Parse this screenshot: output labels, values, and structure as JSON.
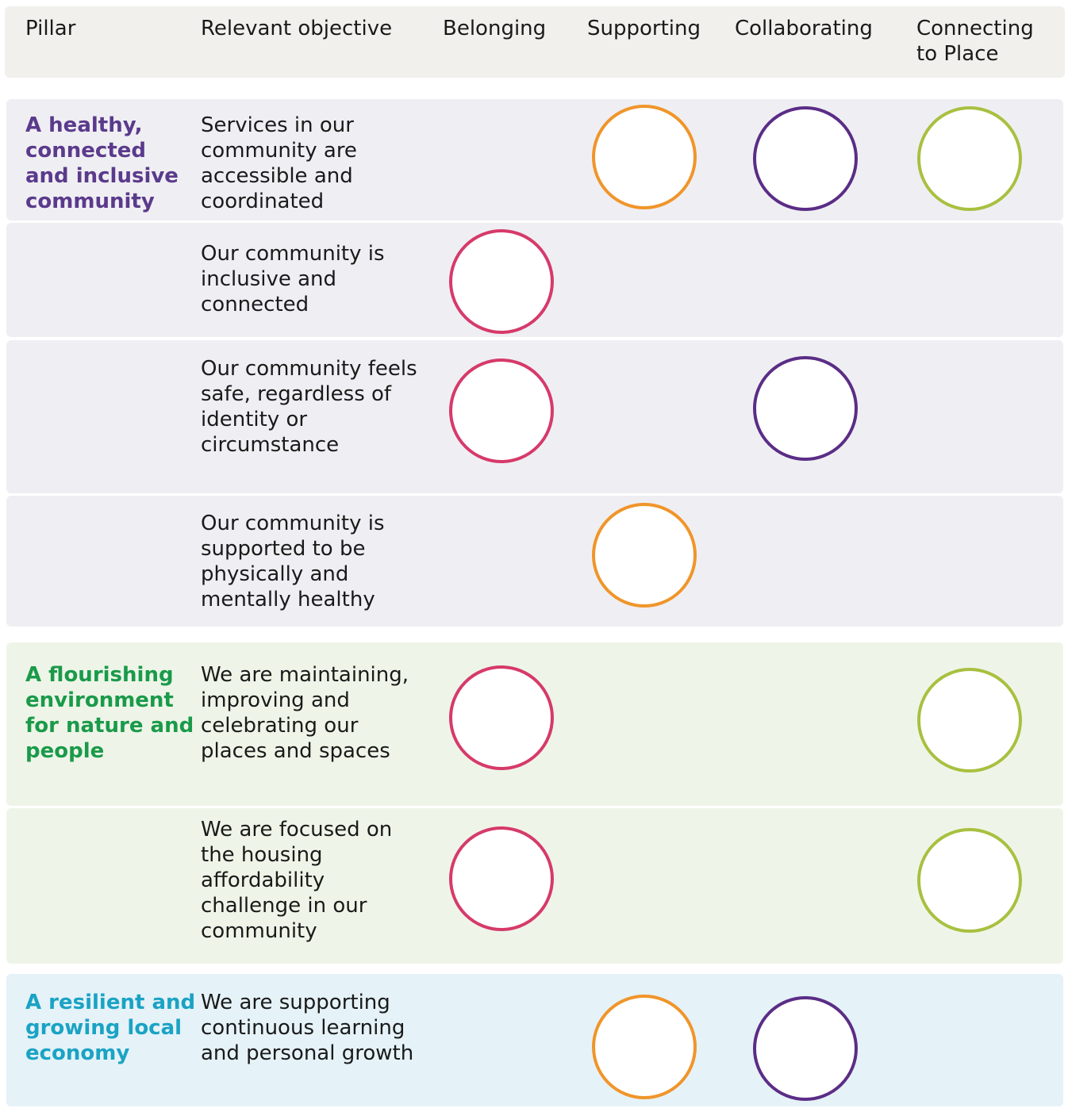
{
  "header": {
    "columns": [
      "Pillar",
      "Relevant objective",
      "Belonging",
      "Supporting",
      "Collaborating",
      "Connecting to Place"
    ]
  },
  "groups": [
    {
      "pillar": "A healthy, connected and inclusive community",
      "objectives": [
        "Services in our community are accessible and coordinated",
        "Our community is inclusive and connected",
        "Our community feels safe, regardless of identity or circumstance",
        "Our community is supported to be physically and mentally healthy"
      ]
    },
    {
      "pillar": "A flourishing environment for nature and people",
      "objectives": [
        "We are maintaining, improving and celebrating our places and spaces",
        "We are focused on the housing affordability challenge in our community"
      ]
    },
    {
      "pillar": "A resilient and growing local economy",
      "objectives": [
        "We are supporting continuous learning and personal growth"
      ]
    }
  ]
}
